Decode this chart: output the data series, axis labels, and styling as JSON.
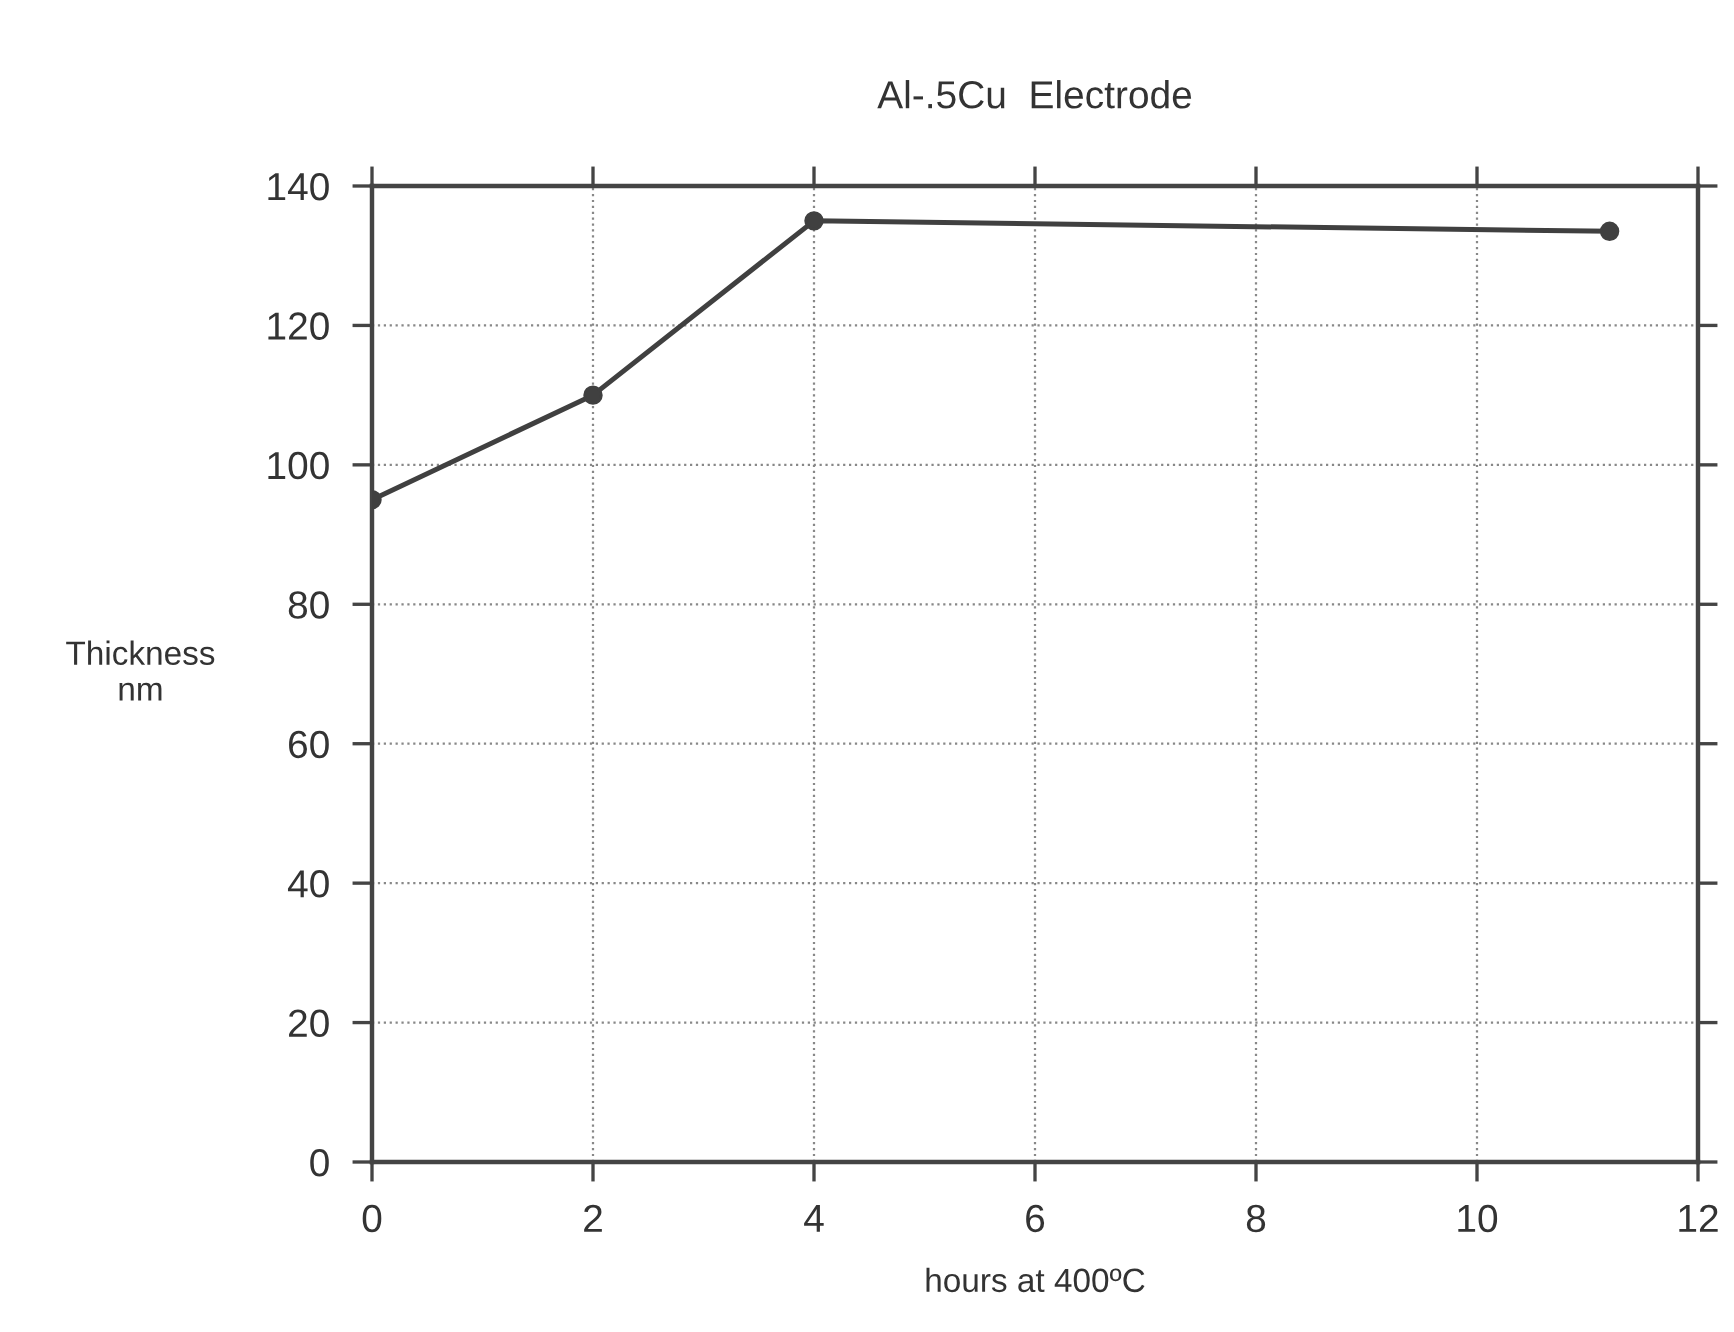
{
  "chart_data": {
    "type": "line",
    "title": "Al-.5Cu  Electrode",
    "xlabel": "hours at 400ºC",
    "ylabel": "Thickness\nnm",
    "x": [
      0,
      2,
      4,
      11.2
    ],
    "series": [
      {
        "color": "#404040",
        "values": [
          95,
          110,
          135,
          133.5
        ]
      }
    ],
    "xlim": [
      0,
      12
    ],
    "xticks": [
      0,
      2,
      4,
      6,
      8,
      10,
      12
    ],
    "ylim": [
      0,
      140
    ],
    "yticks": [
      0,
      20,
      40,
      60,
      80,
      100,
      120,
      140
    ],
    "grid": true,
    "marker": "circle",
    "line_style": "solid"
  }
}
